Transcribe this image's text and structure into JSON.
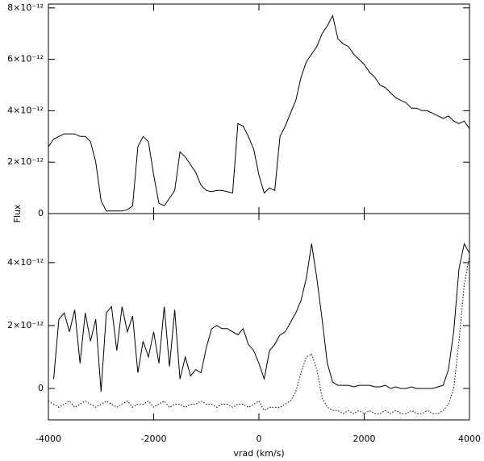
{
  "chart_data": [
    {
      "type": "line",
      "ylabel": "Flux",
      "x": [
        -4000,
        -3900,
        -3800,
        -3700,
        -3600,
        -3500,
        -3400,
        -3300,
        -3200,
        -3100,
        -3000,
        -2900,
        -2800,
        -2700,
        -2600,
        -2500,
        -2400,
        -2300,
        -2200,
        -2100,
        -2000,
        -1900,
        -1800,
        -1700,
        -1600,
        -1500,
        -1400,
        -1300,
        -1200,
        -1100,
        -1000,
        -900,
        -800,
        -700,
        -600,
        -500,
        -400,
        -300,
        -200,
        -100,
        0,
        100,
        200,
        300,
        400,
        500,
        600,
        700,
        800,
        900,
        1000,
        1100,
        1200,
        1300,
        1400,
        1500,
        1600,
        1700,
        1800,
        1900,
        2000,
        2100,
        2200,
        2300,
        2400,
        2500,
        2600,
        2700,
        2800,
        2900,
        3000,
        3100,
        3200,
        3300,
        3400,
        3500,
        3600,
        3700,
        3800,
        3900,
        4000
      ],
      "values": [
        2.6e-12,
        2.9e-12,
        3e-12,
        3.1e-12,
        3.1e-12,
        3.1e-12,
        3e-12,
        3e-12,
        2.8e-12,
        2e-12,
        5e-13,
        1e-13,
        1e-13,
        1e-13,
        1e-13,
        1.5e-13,
        3e-13,
        2.6e-12,
        3e-12,
        2.8e-12,
        1.5e-12,
        4e-13,
        3e-13,
        6e-13,
        9e-13,
        2.4e-12,
        2.2e-12,
        1.9e-12,
        1.6e-12,
        1.1e-12,
        9e-13,
        8.5e-13,
        9e-13,
        9e-13,
        8.5e-13,
        8e-13,
        3.5e-12,
        3.4e-12,
        3e-12,
        2.5e-12,
        1.5e-12,
        8e-13,
        1e-12,
        9e-13,
        3e-12,
        3.4e-12,
        3.9e-12,
        4.4e-12,
        5.3e-12,
        5.9e-12,
        6.2e-12,
        6.5e-12,
        7e-12,
        7.3e-12,
        7.7e-12,
        6.8e-12,
        6.6e-12,
        6.5e-12,
        6.2e-12,
        6e-12,
        5.8e-12,
        5.5e-12,
        5.3e-12,
        5e-12,
        4.9e-12,
        4.7e-12,
        4.5e-12,
        4.4e-12,
        4.3e-12,
        4.1e-12,
        4.1e-12,
        4e-12,
        4e-12,
        3.9e-12,
        3.8e-12,
        3.7e-12,
        3.8e-12,
        3.6e-12,
        3.5e-12,
        3.6e-12,
        3.3e-12
      ],
      "color": "#000000",
      "xlim": [
        -4000,
        4000
      ],
      "xticks": [
        -4000,
        -2000,
        0,
        2000,
        4000
      ],
      "ylim": [
        0,
        8.15e-12
      ],
      "yticks": [
        0,
        {
          "value": 2e-12,
          "label": "2×10⁻¹²"
        },
        {
          "value": 4e-12,
          "label": "4×10⁻¹²"
        },
        {
          "value": 6e-12,
          "label": "6×10⁻¹²"
        },
        {
          "value": 8e-12,
          "label": "8×10⁻¹²"
        }
      ],
      "grid": false
    },
    {
      "type": "line",
      "xlabel": "vrad (km/s)",
      "x": [
        -4000,
        -3900,
        -3800,
        -3700,
        -3600,
        -3500,
        -3400,
        -3300,
        -3200,
        -3100,
        -3000,
        -2900,
        -2800,
        -2700,
        -2600,
        -2500,
        -2400,
        -2300,
        -2200,
        -2100,
        -2000,
        -1900,
        -1800,
        -1700,
        -1600,
        -1500,
        -1400,
        -1300,
        -1200,
        -1100,
        -1000,
        -900,
        -800,
        -700,
        -600,
        -500,
        -400,
        -300,
        -200,
        -100,
        0,
        100,
        200,
        300,
        400,
        500,
        600,
        700,
        800,
        900,
        1000,
        1100,
        1200,
        1300,
        1400,
        1500,
        1600,
        1700,
        1800,
        1900,
        2000,
        2100,
        2200,
        2300,
        2400,
        2500,
        2600,
        2700,
        2800,
        2900,
        3000,
        3100,
        3200,
        3300,
        3400,
        3500,
        3600,
        3700,
        3800,
        3900,
        4000
      ],
      "series": [
        {
          "color": "#000000",
          "linestyle": "solid",
          "values": [
            null,
            3e-13,
            2.2e-12,
            2.4e-12,
            1.8e-12,
            2.5e-12,
            8e-13,
            2.4e-12,
            1.5e-12,
            2.2e-12,
            -1e-13,
            2.4e-12,
            2.6e-12,
            1.2e-12,
            2.6e-12,
            1.8e-12,
            2.3e-12,
            5e-13,
            1.5e-12,
            1e-12,
            1.8e-12,
            8e-13,
            2.6e-12,
            7e-13,
            2.5e-12,
            3e-13,
            1e-12,
            4e-13,
            6e-13,
            5e-13,
            1.3e-12,
            1.9e-12,
            2e-12,
            1.9e-12,
            1.9e-12,
            1.8e-12,
            1.7e-12,
            1.9e-12,
            1.4e-12,
            1.2e-12,
            8e-13,
            3e-13,
            1.2e-12,
            1.4e-12,
            1.7e-12,
            1.8e-12,
            2.1e-12,
            2.4e-12,
            2.8e-12,
            3.5e-12,
            4.6e-12,
            3.5e-12,
            2.2e-12,
            8e-13,
            2e-13,
            1e-13,
            1e-13,
            1e-13,
            5e-14,
            1e-13,
            1e-13,
            1e-13,
            5e-14,
            5e-14,
            1e-13,
            0.0,
            5e-14,
            0.0,
            0.0,
            5e-14,
            0.0,
            0.0,
            0.0,
            0.0,
            5e-14,
            1e-13,
            6e-13,
            1.8e-12,
            3.8e-12,
            4.6e-12,
            4.3e-12
          ]
        },
        {
          "color": "#000000",
          "linestyle": "dotted",
          "values": [
            -4e-13,
            -5e-13,
            -6e-13,
            -5e-13,
            -4e-13,
            -6e-13,
            -5e-13,
            -4e-13,
            -5e-13,
            -6e-13,
            -5e-13,
            -4e-13,
            -5e-13,
            -6e-13,
            -5e-13,
            -4e-13,
            -6e-13,
            -5e-13,
            -5e-13,
            -4e-13,
            -6e-13,
            -5e-13,
            -4e-13,
            -6e-13,
            -5e-13,
            -5e-13,
            -6e-13,
            -5e-13,
            -5e-13,
            -4e-13,
            -5e-13,
            -5e-13,
            -6e-13,
            -5e-13,
            -5e-13,
            -6e-13,
            -5e-13,
            -5e-13,
            -6e-13,
            -5e-13,
            -4e-13,
            -7e-13,
            -6e-13,
            -6e-13,
            -6e-13,
            -5e-13,
            -4e-13,
            -1e-13,
            5e-13,
            1e-12,
            1.1e-12,
            6e-13,
            -3e-13,
            -6e-13,
            -7e-13,
            -7e-13,
            -8e-13,
            -7e-13,
            -8e-13,
            -7e-13,
            -8e-13,
            -7e-13,
            -8e-13,
            -8e-13,
            -7e-13,
            -8e-13,
            -7e-13,
            -8e-13,
            -8e-13,
            -7e-13,
            -8e-13,
            -8e-13,
            -7e-13,
            -8e-13,
            -8e-13,
            -7e-13,
            -5e-13,
            0.0,
            1.5e-12,
            3.3e-12,
            4.2e-12
          ]
        }
      ],
      "xlim": [
        -4000,
        4000
      ],
      "xticks": [
        -4000,
        -2000,
        0,
        2000,
        4000
      ],
      "ylim": [
        -1e-12,
        5.56e-12
      ],
      "yticks": [
        0,
        {
          "value": 2e-12,
          "label": "2×10⁻¹²"
        },
        {
          "value": 4e-12,
          "label": "4×10⁻¹²"
        }
      ],
      "grid": false
    }
  ]
}
